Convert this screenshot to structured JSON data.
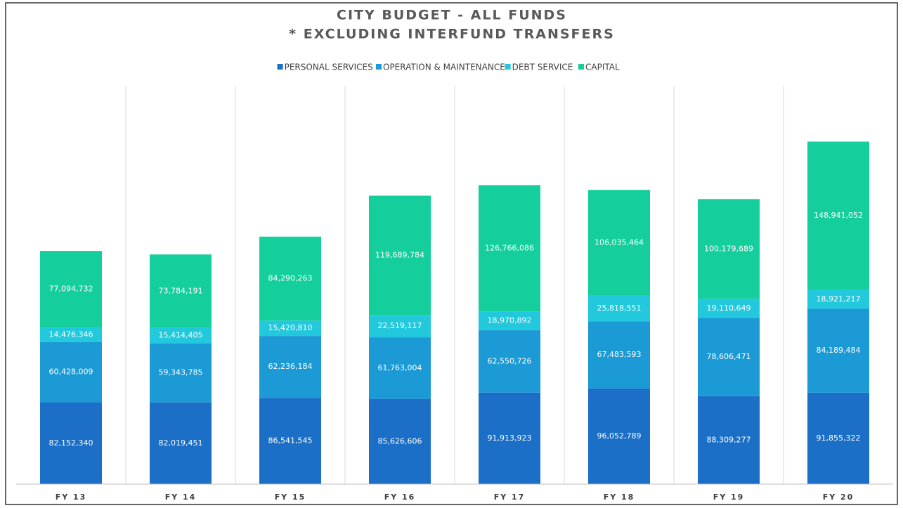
{
  "chart_data": {
    "type": "stacked_bar",
    "title": [
      "CITY BUDGET - ALL FUNDS",
      "* EXCLUDING INTERFUND TRANSFERS"
    ],
    "categories": [
      "FY 13",
      "FY 14",
      "FY 15",
      "FY 16",
      "FY 17",
      "FY 18",
      "FY 19",
      "FY 20"
    ],
    "ylim": [
      0,
      400000000
    ],
    "series": [
      {
        "name": "PERSONAL SERVICES",
        "color": "#1b6fc6",
        "values": [
          82152340,
          82019451,
          86541545,
          85626606,
          91913923,
          96052789,
          88309277,
          91855322
        ],
        "value_labels": [
          "82,152,340",
          "82,019,451",
          "86,541,545",
          "85,626,606",
          "91,913,923",
          "96,052,789",
          "88,309,277",
          "91,855,322"
        ]
      },
      {
        "name": "OPERATION & MAINTENANCE",
        "color": "#1b9ad6",
        "values": [
          60428009,
          59343785,
          62236184,
          61763004,
          62550726,
          67483593,
          78606471,
          84189484
        ],
        "value_labels": [
          "60,428,009",
          "59,343,785",
          "62,236,184",
          "61,763,004",
          "62,550,726",
          "67,483,593",
          "78,606,471",
          "84,189,484"
        ]
      },
      {
        "name": "DEBT SERVICE",
        "color": "#22c8dc",
        "values": [
          14476346,
          15414405,
          15420810,
          22519117,
          18970892,
          25818551,
          19110649,
          18921217
        ],
        "value_labels": [
          "14,476,346",
          "15,414,405",
          "15,420,810",
          "22,519,117",
          "18,970,892",
          "25,818,551",
          "19,110,649",
          "18,921,217"
        ]
      },
      {
        "name": "CAPITAL",
        "color": "#14cf9b",
        "values": [
          77094732,
          73784191,
          84290263,
          119689784,
          126766086,
          106035464,
          100179689,
          148941052
        ],
        "value_labels": [
          "77,094,732",
          "73,784,191",
          "84,290,263",
          "119,689,784",
          "126,766,086",
          "106,035,464",
          "100,179,689",
          "148,941,052"
        ]
      }
    ]
  }
}
